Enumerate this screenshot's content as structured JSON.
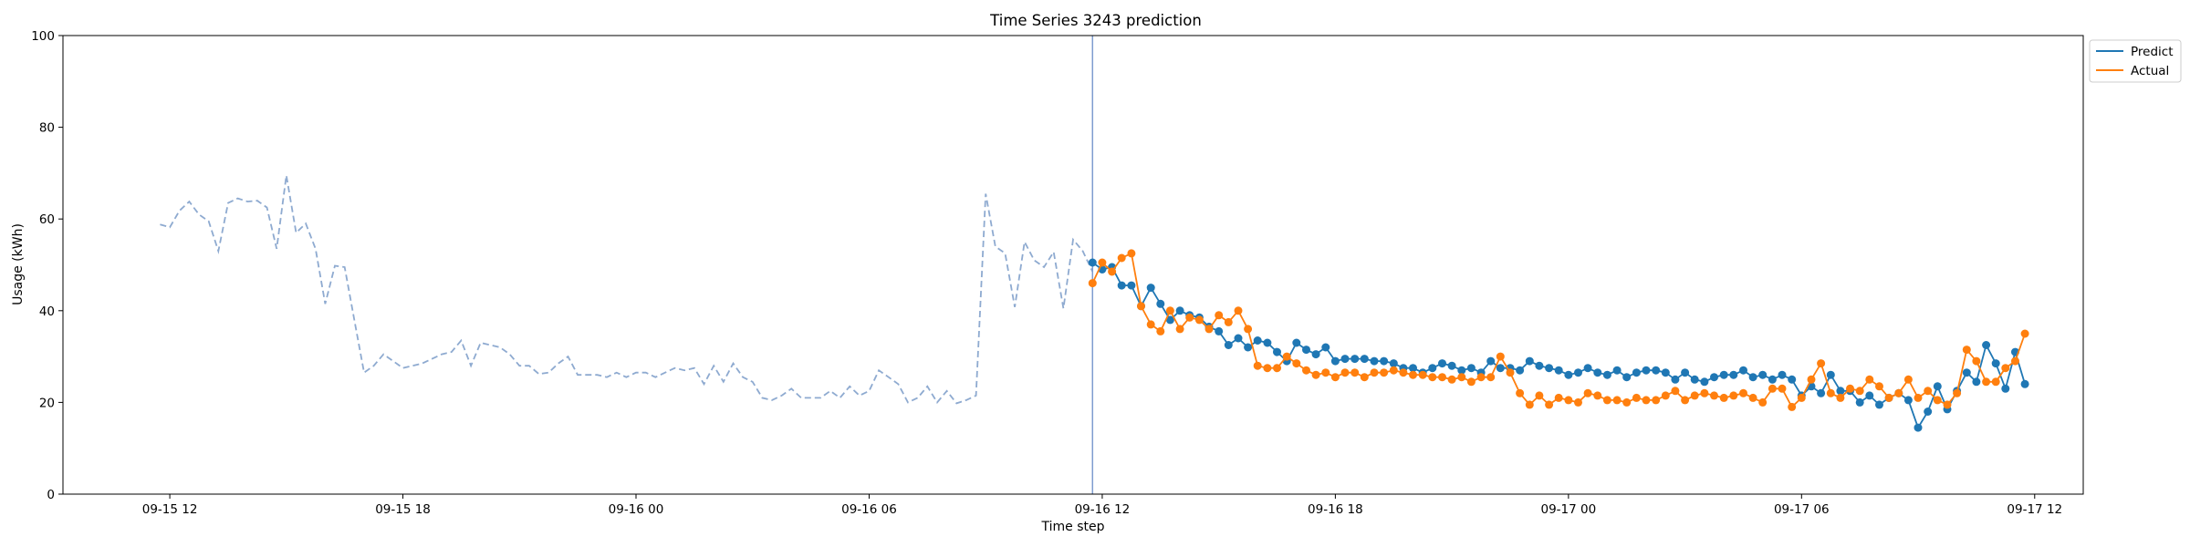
{
  "chart_data": {
    "type": "line",
    "title": "Time Series 3243 prediction",
    "xlabel": "Time step",
    "ylabel": "Usage (kWh)",
    "ylim": [
      0,
      100
    ],
    "yticks": [
      0,
      20,
      40,
      60,
      80,
      100
    ],
    "xlim": [
      "2023-09-15 09:15",
      "2023-09-17 13:15"
    ],
    "xticks": [
      {
        "t": "2023-09-15 12:00",
        "label": "09-15 12"
      },
      {
        "t": "2023-09-15 18:00",
        "label": "09-15 18"
      },
      {
        "t": "2023-09-16 00:00",
        "label": "09-16 00"
      },
      {
        "t": "2023-09-16 06:00",
        "label": "09-16 06"
      },
      {
        "t": "2023-09-16 12:00",
        "label": "09-16 12"
      },
      {
        "t": "2023-09-16 18:00",
        "label": "09-16 18"
      },
      {
        "t": "2023-09-17 00:00",
        "label": "09-17 00"
      },
      {
        "t": "2023-09-17 06:00",
        "label": "09-17 06"
      },
      {
        "t": "2023-09-17 12:00",
        "label": "09-17 12"
      }
    ],
    "forecast_start": "2023-09-16 11:45",
    "interval_minutes": 15,
    "history": {
      "start": "2023-09-15 11:45",
      "step_minutes": 15,
      "color": "#8eaad0",
      "style": "dashed",
      "values": [
        58.8,
        58.2,
        61.8,
        63.8,
        61.0,
        59.5,
        53.0,
        63.5,
        64.5,
        63.8,
        64.0,
        62.5,
        53.5,
        69.5,
        57.0,
        59.0,
        53.5,
        41.5,
        49.8,
        49.5,
        38.0,
        26.5,
        28.0,
        30.5,
        29.0,
        27.5,
        28.0,
        28.5,
        29.5,
        30.5,
        31.0,
        33.5,
        28.0,
        33.0,
        32.5,
        32.0,
        30.5,
        28.0,
        28.0,
        26.2,
        26.5,
        28.5,
        30.0,
        26.0,
        26.0,
        26.0,
        25.5,
        26.5,
        25.5,
        26.5,
        26.5,
        25.5,
        26.5,
        27.5,
        27.0,
        27.5,
        24.0,
        28.0,
        24.5,
        28.5,
        25.5,
        24.5,
        21.0,
        20.5,
        21.5,
        23.0,
        21.0,
        21.0,
        21.0,
        22.5,
        21.0,
        23.5,
        21.5,
        22.5,
        27.0,
        25.5,
        24.0,
        20.0,
        21.0,
        23.5,
        20.0,
        22.5,
        19.8,
        20.5,
        21.5,
        65.5,
        54.0,
        52.5,
        40.8,
        55.0,
        51.0,
        49.5,
        52.8,
        40.5,
        55.5,
        53.0,
        48.5
      ]
    },
    "series": [
      {
        "name": "Predict",
        "color": "#1f77b4",
        "start": "2023-09-16 11:45",
        "step_minutes": 15,
        "values": [
          50.5,
          49.0,
          49.5,
          45.5,
          45.5,
          41.0,
          45.0,
          41.5,
          38.0,
          40.0,
          39.0,
          38.5,
          36.5,
          35.5,
          32.5,
          34.0,
          32.0,
          33.5,
          33.0,
          31.0,
          29.0,
          33.0,
          31.5,
          30.5,
          32.0,
          29.0,
          29.5,
          29.5,
          29.5,
          29.0,
          29.0,
          28.5,
          27.5,
          27.5,
          26.5,
          27.5,
          28.5,
          28.0,
          27.0,
          27.5,
          26.5,
          29.0,
          27.5,
          27.5,
          27.0,
          29.0,
          28.0,
          27.5,
          27.0,
          26.0,
          26.5,
          27.5,
          26.5,
          26.0,
          27.0,
          25.5,
          26.5,
          27.0,
          27.0,
          26.5,
          25.0,
          26.5,
          25.0,
          24.5,
          25.5,
          26.0,
          26.0,
          27.0,
          25.5,
          26.0,
          25.0,
          26.0,
          25.0,
          21.5,
          23.5,
          22.0,
          26.0,
          22.5,
          22.5,
          20.0,
          21.5,
          19.5,
          21.0,
          22.0,
          20.5,
          14.5,
          18.0,
          23.5,
          18.5,
          22.5,
          26.5,
          24.5,
          32.5,
          28.5,
          23.0,
          31.0,
          24.0
        ]
      },
      {
        "name": "Actual",
        "color": "#ff7f0e",
        "start": "2023-09-16 11:45",
        "step_minutes": 15,
        "values": [
          46.0,
          50.5,
          48.5,
          51.5,
          52.5,
          41.0,
          37.0,
          35.5,
          40.0,
          36.0,
          38.5,
          38.0,
          36.0,
          39.0,
          37.5,
          40.0,
          36.0,
          28.0,
          27.5,
          27.5,
          30.0,
          28.5,
          27.0,
          26.0,
          26.5,
          25.5,
          26.5,
          26.5,
          25.5,
          26.5,
          26.5,
          27.0,
          26.5,
          26.0,
          26.0,
          25.5,
          25.5,
          25.0,
          25.5,
          24.5,
          25.5,
          25.5,
          30.0,
          26.5,
          22.0,
          19.5,
          21.5,
          19.5,
          21.0,
          20.5,
          20.0,
          22.0,
          21.5,
          20.5,
          20.5,
          20.0,
          21.0,
          20.5,
          20.5,
          21.5,
          22.5,
          20.5,
          21.5,
          22.0,
          21.5,
          21.0,
          21.5,
          22.0,
          21.0,
          20.0,
          23.0,
          23.0,
          19.0,
          21.0,
          25.0,
          28.5,
          22.0,
          21.0,
          23.0,
          22.5,
          25.0,
          23.5,
          21.0,
          22.0,
          25.0,
          21.0,
          22.5,
          20.5,
          19.5,
          22.0,
          31.5,
          29.0,
          24.5,
          24.5,
          27.5,
          29.0,
          35.0
        ]
      }
    ],
    "legend": {
      "placement": "top-right",
      "entries": [
        "Predict",
        "Actual"
      ]
    },
    "grid": false
  }
}
